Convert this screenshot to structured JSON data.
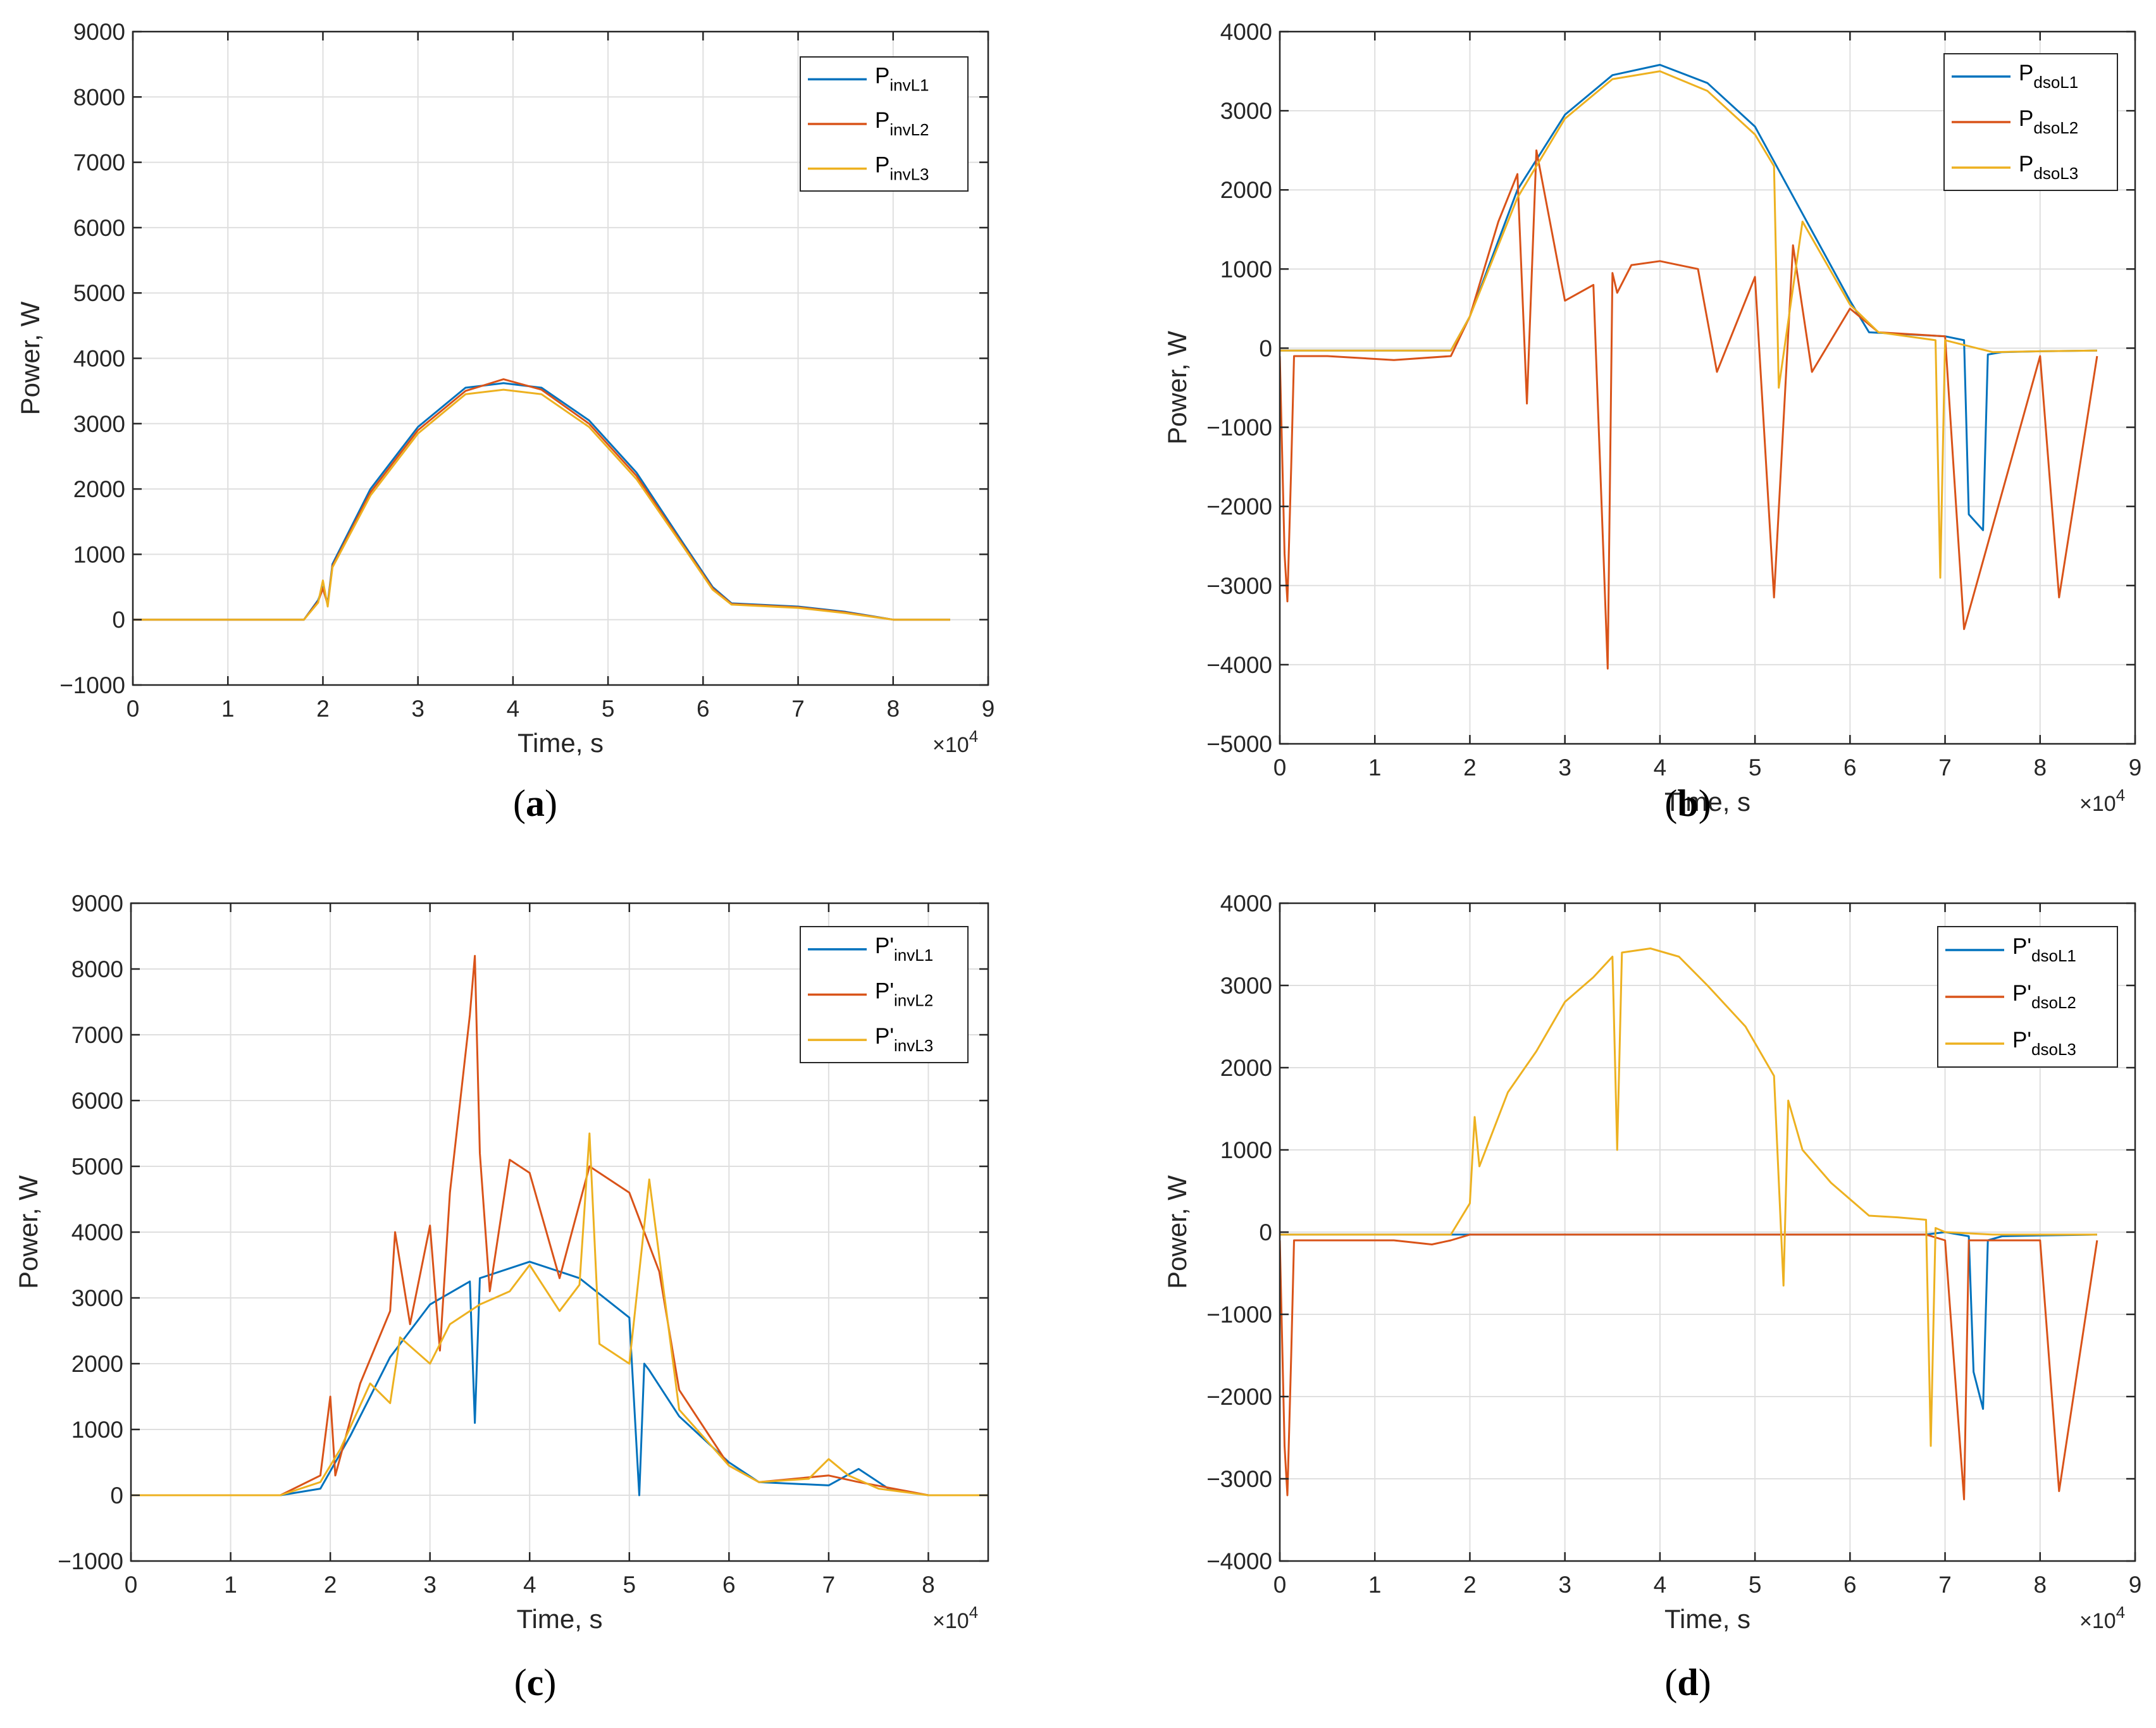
{
  "chart_data": [
    {
      "id": "a",
      "type": "line",
      "caption": "a",
      "xlabel": "Time, s",
      "ylabel": "Power, W",
      "x_multiplier": "10",
      "x_exponent": "4",
      "xlim": [
        0,
        9
      ],
      "ylim": [
        -1000,
        9000
      ],
      "xticks": [
        0,
        1,
        2,
        3,
        4,
        5,
        6,
        7,
        8,
        9
      ],
      "yticks": [
        -1000,
        0,
        1000,
        2000,
        3000,
        4000,
        5000,
        6000,
        7000,
        8000,
        9000
      ],
      "grid": true,
      "legend_position": "top-right",
      "series": [
        {
          "name": "P",
          "prime": "",
          "sub": "invL1",
          "color": "#0072BD",
          "x": [
            0,
            1.8,
            1.95,
            2.0,
            2.05,
            2.1,
            2.5,
            3.0,
            3.5,
            3.9,
            4.3,
            4.8,
            5.3,
            5.8,
            6.1,
            6.3,
            7.0,
            7.5,
            8.0,
            8.6
          ],
          "y": [
            0,
            0,
            300,
            500,
            250,
            850,
            2000,
            2950,
            3550,
            3620,
            3550,
            3050,
            2250,
            1150,
            500,
            250,
            200,
            120,
            0,
            0
          ]
        },
        {
          "name": "P",
          "prime": "",
          "sub": "invL2",
          "color": "#D95319",
          "x": [
            0,
            1.8,
            1.95,
            2.0,
            2.05,
            2.1,
            2.5,
            3.0,
            3.5,
            3.9,
            4.3,
            4.8,
            5.3,
            5.8,
            6.1,
            6.3,
            7.0,
            7.5,
            8.0,
            8.6
          ],
          "y": [
            0,
            0,
            280,
            480,
            230,
            820,
            1950,
            2900,
            3500,
            3680,
            3520,
            3000,
            2200,
            1120,
            480,
            240,
            190,
            110,
            0,
            0
          ]
        },
        {
          "name": "P",
          "prime": "",
          "sub": "invL3",
          "color": "#EDB120",
          "x": [
            0,
            1.8,
            1.95,
            2.0,
            2.05,
            2.1,
            2.5,
            3.0,
            3.5,
            3.9,
            4.3,
            4.8,
            5.3,
            5.8,
            6.1,
            6.3,
            7.0,
            7.5,
            8.0,
            8.6
          ],
          "y": [
            0,
            0,
            260,
            600,
            200,
            800,
            1900,
            2850,
            3450,
            3520,
            3450,
            2950,
            2150,
            1100,
            460,
            230,
            180,
            100,
            0,
            0
          ]
        }
      ]
    },
    {
      "id": "b",
      "type": "line",
      "caption": "b",
      "xlabel": "Time, s",
      "ylabel": "Power, W",
      "x_multiplier": "10",
      "x_exponent": "4",
      "xlim": [
        0,
        9
      ],
      "ylim": [
        -5000,
        4000
      ],
      "xticks": [
        0,
        1,
        2,
        3,
        4,
        5,
        6,
        7,
        8,
        9
      ],
      "yticks": [
        -5000,
        -4000,
        -3000,
        -2000,
        -1000,
        0,
        1000,
        2000,
        3000,
        4000
      ],
      "grid": true,
      "legend_position": "top-right",
      "series": [
        {
          "name": "P",
          "prime": "",
          "sub": "dsoL1",
          "color": "#0072BD",
          "x": [
            0,
            1.8,
            2.0,
            2.5,
            3.0,
            3.5,
            4.0,
            4.5,
            5.0,
            5.5,
            6.0,
            6.2,
            7.0,
            7.2,
            7.25,
            7.4,
            7.45,
            7.6,
            8.0,
            8.6
          ],
          "y": [
            -30,
            -30,
            400,
            2000,
            2950,
            3450,
            3580,
            3350,
            2800,
            1700,
            600,
            200,
            150,
            100,
            -2100,
            -2300,
            -80,
            -50,
            -40,
            -30
          ]
        },
        {
          "name": "P",
          "prime": "",
          "sub": "dsoL2",
          "color": "#D95319",
          "x": [
            0,
            0.05,
            0.08,
            0.12,
            0.15,
            0.5,
            1.2,
            1.8,
            2.0,
            2.3,
            2.5,
            2.6,
            2.7,
            3.0,
            3.3,
            3.45,
            3.5,
            3.55,
            3.7,
            4.0,
            4.4,
            4.6,
            5.0,
            5.2,
            5.4,
            5.6,
            6.0,
            6.3,
            7.0,
            7.2,
            8.0,
            8.2,
            8.6
          ],
          "y": [
            -100,
            -2600,
            -3200,
            -1500,
            -100,
            -100,
            -150,
            -100,
            400,
            1600,
            2200,
            -700,
            2500,
            600,
            800,
            -4050,
            950,
            700,
            1050,
            1100,
            1000,
            -300,
            900,
            -3150,
            1300,
            -300,
            500,
            200,
            150,
            -3550,
            -100,
            -3150,
            -100
          ]
        },
        {
          "name": "P",
          "prime": "",
          "sub": "dsoL3",
          "color": "#EDB120",
          "x": [
            0,
            1.8,
            2.0,
            2.5,
            3.0,
            3.5,
            4.0,
            4.5,
            5.0,
            5.2,
            5.25,
            5.5,
            6.0,
            6.3,
            6.9,
            6.95,
            7.0,
            7.5,
            8.0,
            8.6
          ],
          "y": [
            -30,
            -30,
            400,
            1900,
            2900,
            3400,
            3500,
            3250,
            2700,
            2300,
            -500,
            1600,
            550,
            200,
            100,
            -2900,
            100,
            -50,
            -40,
            -30
          ]
        }
      ]
    },
    {
      "id": "c",
      "type": "line",
      "caption": "c",
      "xlabel": "Time, s",
      "ylabel": "Power, W",
      "x_multiplier": "10",
      "x_exponent": "4",
      "xlim": [
        0,
        8.6
      ],
      "ylim": [
        -1000,
        9000
      ],
      "xticks": [
        0,
        1,
        2,
        3,
        4,
        5,
        6,
        7,
        8
      ],
      "yticks": [
        -1000,
        0,
        1000,
        2000,
        3000,
        4000,
        5000,
        6000,
        7000,
        8000,
        9000
      ],
      "grid": true,
      "legend_position": "top-right",
      "series": [
        {
          "name": "P",
          "prime": "'",
          "sub": "invL1",
          "color": "#0072BD",
          "x": [
            0,
            1.5,
            1.9,
            2.2,
            2.6,
            3.0,
            3.4,
            3.45,
            3.5,
            4.0,
            4.5,
            5.0,
            5.1,
            5.15,
            5.2,
            5.5,
            6.0,
            6.3,
            7.0,
            7.3,
            7.6,
            8.0,
            8.6
          ],
          "y": [
            0,
            0,
            100,
            900,
            2100,
            2900,
            3250,
            1100,
            3300,
            3550,
            3300,
            2700,
            0,
            2000,
            1900,
            1200,
            500,
            200,
            150,
            400,
            100,
            0,
            0
          ]
        },
        {
          "name": "P",
          "prime": "'",
          "sub": "invL2",
          "color": "#D95319",
          "x": [
            0,
            1.5,
            1.9,
            2.0,
            2.05,
            2.3,
            2.6,
            2.65,
            2.8,
            3.0,
            3.1,
            3.2,
            3.4,
            3.45,
            3.5,
            3.6,
            3.8,
            4.0,
            4.3,
            4.6,
            5.0,
            5.3,
            5.5,
            6.0,
            6.3,
            7.0,
            7.3,
            8.0,
            8.6
          ],
          "y": [
            0,
            0,
            300,
            1500,
            300,
            1700,
            2800,
            4000,
            2600,
            4100,
            2200,
            4600,
            7300,
            8200,
            5200,
            3100,
            5100,
            4900,
            3300,
            5000,
            4600,
            3400,
            1600,
            450,
            200,
            300,
            200,
            0,
            0
          ]
        },
        {
          "name": "P",
          "prime": "'",
          "sub": "invL3",
          "color": "#EDB120",
          "x": [
            0,
            1.5,
            1.9,
            2.1,
            2.4,
            2.6,
            2.7,
            3.0,
            3.2,
            3.5,
            3.8,
            4.0,
            4.3,
            4.5,
            4.6,
            4.7,
            5.0,
            5.2,
            5.5,
            6.0,
            6.3,
            6.8,
            7.0,
            7.2,
            7.5,
            8.0,
            8.6
          ],
          "y": [
            0,
            0,
            200,
            700,
            1700,
            1400,
            2400,
            2000,
            2600,
            2900,
            3100,
            3500,
            2800,
            3200,
            5500,
            2300,
            2000,
            4800,
            1300,
            450,
            200,
            250,
            550,
            300,
            100,
            0,
            0
          ]
        }
      ]
    },
    {
      "id": "d",
      "type": "line",
      "caption": "d",
      "xlabel": "Time, s",
      "ylabel": "Power, W",
      "x_multiplier": "10",
      "x_exponent": "4",
      "xlim": [
        0,
        9
      ],
      "ylim": [
        -4000,
        4000
      ],
      "xticks": [
        0,
        1,
        2,
        3,
        4,
        5,
        6,
        7,
        8,
        9
      ],
      "yticks": [
        -4000,
        -3000,
        -2000,
        -1000,
        0,
        1000,
        2000,
        3000,
        4000
      ],
      "grid": true,
      "legend_position": "top-right",
      "series": [
        {
          "name": "P",
          "prime": "'",
          "sub": "dsoL1",
          "color": "#0072BD",
          "x": [
            0,
            6.8,
            7.0,
            7.25,
            7.3,
            7.4,
            7.45,
            7.6,
            8.0,
            8.6
          ],
          "y": [
            -30,
            -30,
            0,
            -50,
            -1700,
            -2150,
            -100,
            -50,
            -40,
            -30
          ]
        },
        {
          "name": "P",
          "prime": "'",
          "sub": "dsoL2",
          "color": "#D95319",
          "x": [
            0,
            0.05,
            0.08,
            0.12,
            0.15,
            0.5,
            1.2,
            1.6,
            1.8,
            2.0,
            6.8,
            7.0,
            7.2,
            7.25,
            7.5,
            8.0,
            8.2,
            8.6
          ],
          "y": [
            -100,
            -2600,
            -3200,
            -1500,
            -100,
            -100,
            -100,
            -150,
            -100,
            -30,
            -30,
            -100,
            -3250,
            -100,
            -100,
            -100,
            -3150,
            -100
          ]
        },
        {
          "name": "P",
          "prime": "'",
          "sub": "dsoL3",
          "color": "#EDB120",
          "x": [
            0,
            1.8,
            2.0,
            2.05,
            2.1,
            2.4,
            2.7,
            3.0,
            3.3,
            3.5,
            3.55,
            3.6,
            3.9,
            4.2,
            4.5,
            4.9,
            5.2,
            5.3,
            5.35,
            5.5,
            5.8,
            6.2,
            6.5,
            6.8,
            6.85,
            6.9,
            7.0,
            7.5,
            8.0,
            8.6
          ],
          "y": [
            -30,
            -30,
            350,
            1400,
            800,
            1700,
            2200,
            2800,
            3100,
            3350,
            1000,
            3400,
            3450,
            3350,
            3000,
            2500,
            1900,
            -650,
            1600,
            1000,
            600,
            200,
            180,
            150,
            -2600,
            50,
            0,
            -30,
            -30,
            -30
          ]
        }
      ]
    }
  ]
}
